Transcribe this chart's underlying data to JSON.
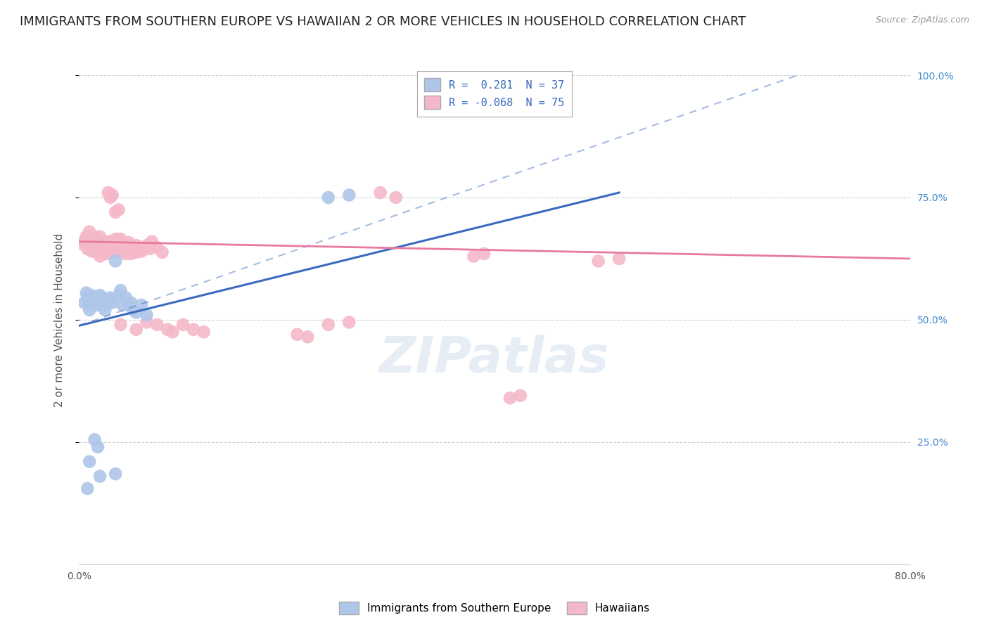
{
  "title": "IMMIGRANTS FROM SOUTHERN EUROPE VS HAWAIIAN 2 OR MORE VEHICLES IN HOUSEHOLD CORRELATION CHART",
  "source": "Source: ZipAtlas.com",
  "ylabel": "2 or more Vehicles in Household",
  "x_min": 0.0,
  "x_max": 0.8,
  "y_min": 0.0,
  "y_max": 1.0,
  "legend_entries": [
    {
      "label": "R =  0.281  N = 37",
      "color": "#aec6e8"
    },
    {
      "label": "R = -0.068  N = 75",
      "color": "#f4b8c8"
    }
  ],
  "legend_label_blue": "Immigrants from Southern Europe",
  "legend_label_pink": "Hawaiians",
  "watermark": "ZIPatlas",
  "blue_scatter": [
    [
      0.005,
      0.535
    ],
    [
      0.007,
      0.555
    ],
    [
      0.008,
      0.545
    ],
    [
      0.01,
      0.53
    ],
    [
      0.01,
      0.52
    ],
    [
      0.012,
      0.54
    ],
    [
      0.012,
      0.55
    ],
    [
      0.015,
      0.535
    ],
    [
      0.015,
      0.545
    ],
    [
      0.018,
      0.53
    ],
    [
      0.02,
      0.54
    ],
    [
      0.02,
      0.55
    ],
    [
      0.022,
      0.545
    ],
    [
      0.025,
      0.53
    ],
    [
      0.025,
      0.52
    ],
    [
      0.028,
      0.54
    ],
    [
      0.03,
      0.545
    ],
    [
      0.032,
      0.535
    ],
    [
      0.035,
      0.62
    ],
    [
      0.038,
      0.55
    ],
    [
      0.04,
      0.56
    ],
    [
      0.042,
      0.53
    ],
    [
      0.045,
      0.545
    ],
    [
      0.048,
      0.53
    ],
    [
      0.05,
      0.535
    ],
    [
      0.052,
      0.52
    ],
    [
      0.055,
      0.515
    ],
    [
      0.06,
      0.53
    ],
    [
      0.065,
      0.51
    ],
    [
      0.24,
      0.75
    ],
    [
      0.26,
      0.755
    ],
    [
      0.015,
      0.255
    ],
    [
      0.018,
      0.24
    ],
    [
      0.008,
      0.155
    ],
    [
      0.02,
      0.18
    ],
    [
      0.035,
      0.185
    ],
    [
      0.01,
      0.21
    ]
  ],
  "pink_scatter": [
    [
      0.003,
      0.655
    ],
    [
      0.005,
      0.66
    ],
    [
      0.007,
      0.67
    ],
    [
      0.008,
      0.645
    ],
    [
      0.01,
      0.68
    ],
    [
      0.01,
      0.65
    ],
    [
      0.012,
      0.66
    ],
    [
      0.012,
      0.64
    ],
    [
      0.015,
      0.67
    ],
    [
      0.015,
      0.65
    ],
    [
      0.018,
      0.66
    ],
    [
      0.018,
      0.64
    ],
    [
      0.02,
      0.67
    ],
    [
      0.02,
      0.65
    ],
    [
      0.02,
      0.63
    ],
    [
      0.022,
      0.655
    ],
    [
      0.022,
      0.64
    ],
    [
      0.025,
      0.66
    ],
    [
      0.025,
      0.645
    ],
    [
      0.025,
      0.635
    ],
    [
      0.028,
      0.65
    ],
    [
      0.028,
      0.635
    ],
    [
      0.03,
      0.66
    ],
    [
      0.03,
      0.64
    ],
    [
      0.032,
      0.655
    ],
    [
      0.032,
      0.64
    ],
    [
      0.035,
      0.665
    ],
    [
      0.035,
      0.645
    ],
    [
      0.038,
      0.655
    ],
    [
      0.038,
      0.64
    ],
    [
      0.04,
      0.665
    ],
    [
      0.04,
      0.645
    ],
    [
      0.042,
      0.655
    ],
    [
      0.042,
      0.638
    ],
    [
      0.045,
      0.648
    ],
    [
      0.045,
      0.635
    ],
    [
      0.048,
      0.658
    ],
    [
      0.05,
      0.65
    ],
    [
      0.05,
      0.635
    ],
    [
      0.052,
      0.645
    ],
    [
      0.055,
      0.652
    ],
    [
      0.055,
      0.638
    ],
    [
      0.058,
      0.648
    ],
    [
      0.06,
      0.64
    ],
    [
      0.065,
      0.652
    ],
    [
      0.068,
      0.645
    ],
    [
      0.07,
      0.66
    ],
    [
      0.075,
      0.648
    ],
    [
      0.08,
      0.638
    ],
    [
      0.03,
      0.75
    ],
    [
      0.032,
      0.755
    ],
    [
      0.028,
      0.76
    ],
    [
      0.29,
      0.76
    ],
    [
      0.305,
      0.75
    ],
    [
      0.035,
      0.72
    ],
    [
      0.038,
      0.725
    ],
    [
      0.04,
      0.49
    ],
    [
      0.055,
      0.48
    ],
    [
      0.065,
      0.495
    ],
    [
      0.075,
      0.49
    ],
    [
      0.085,
      0.48
    ],
    [
      0.09,
      0.475
    ],
    [
      0.1,
      0.49
    ],
    [
      0.11,
      0.48
    ],
    [
      0.12,
      0.475
    ],
    [
      0.38,
      0.63
    ],
    [
      0.39,
      0.635
    ],
    [
      0.5,
      0.62
    ],
    [
      0.52,
      0.625
    ],
    [
      0.21,
      0.47
    ],
    [
      0.22,
      0.465
    ],
    [
      0.415,
      0.34
    ],
    [
      0.425,
      0.345
    ],
    [
      0.24,
      0.49
    ],
    [
      0.26,
      0.495
    ]
  ],
  "blue_line": {
    "x": [
      0.0,
      0.52
    ],
    "y": [
      0.488,
      0.76
    ]
  },
  "pink_line": {
    "x": [
      0.0,
      0.8
    ],
    "y": [
      0.66,
      0.625
    ]
  },
  "blue_dash_line": {
    "x": [
      0.0,
      0.8
    ],
    "y": [
      0.488,
      1.08
    ]
  },
  "scatter_size": 180,
  "blue_color": "#aec6e8",
  "pink_color": "#f4b8c8",
  "line_blue_color": "#3a6bbf",
  "line_pink_color": "#e87aa0",
  "grid_color": "#cccccc",
  "background_color": "#ffffff",
  "title_fontsize": 13,
  "axis_label_fontsize": 11,
  "tick_fontsize": 10,
  "watermark_fontsize": 52,
  "watermark_color": "#c8d8ea",
  "watermark_alpha": 0.45
}
